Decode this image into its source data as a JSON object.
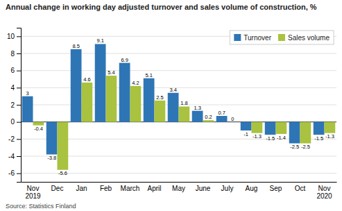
{
  "chart_data": {
    "type": "bar",
    "title": "Annual change in working day adjusted turnover and sales volume of construction, %",
    "source": "Source: Statistics Finland",
    "categories": [
      "Nov\n2019",
      "Dec",
      "Jan",
      "Feb",
      "March",
      "April",
      "May",
      "June",
      "July",
      "Aug",
      "Sep",
      "Oct",
      "Nov\n2020"
    ],
    "series": [
      {
        "name": "Turnover",
        "color": "#2E75B6",
        "values": [
          3.0,
          -3.8,
          8.5,
          9.1,
          6.9,
          5.1,
          3.4,
          1.3,
          0.7,
          -1.0,
          -1.5,
          -2.5,
          -1.5
        ]
      },
      {
        "name": "Sales volume",
        "color": "#A9C23F",
        "values": [
          -0.4,
          -5.6,
          4.6,
          5.4,
          4.2,
          2.5,
          1.8,
          0.2,
          0.0,
          -1.3,
          -1.4,
          -2.5,
          -1.3
        ]
      }
    ],
    "ylim": [
      -7,
      11
    ],
    "yticks": [
      -6,
      -4,
      -2,
      0,
      2,
      4,
      6,
      8,
      10
    ],
    "grid": true,
    "legend": "upper right",
    "data_labels": true
  }
}
